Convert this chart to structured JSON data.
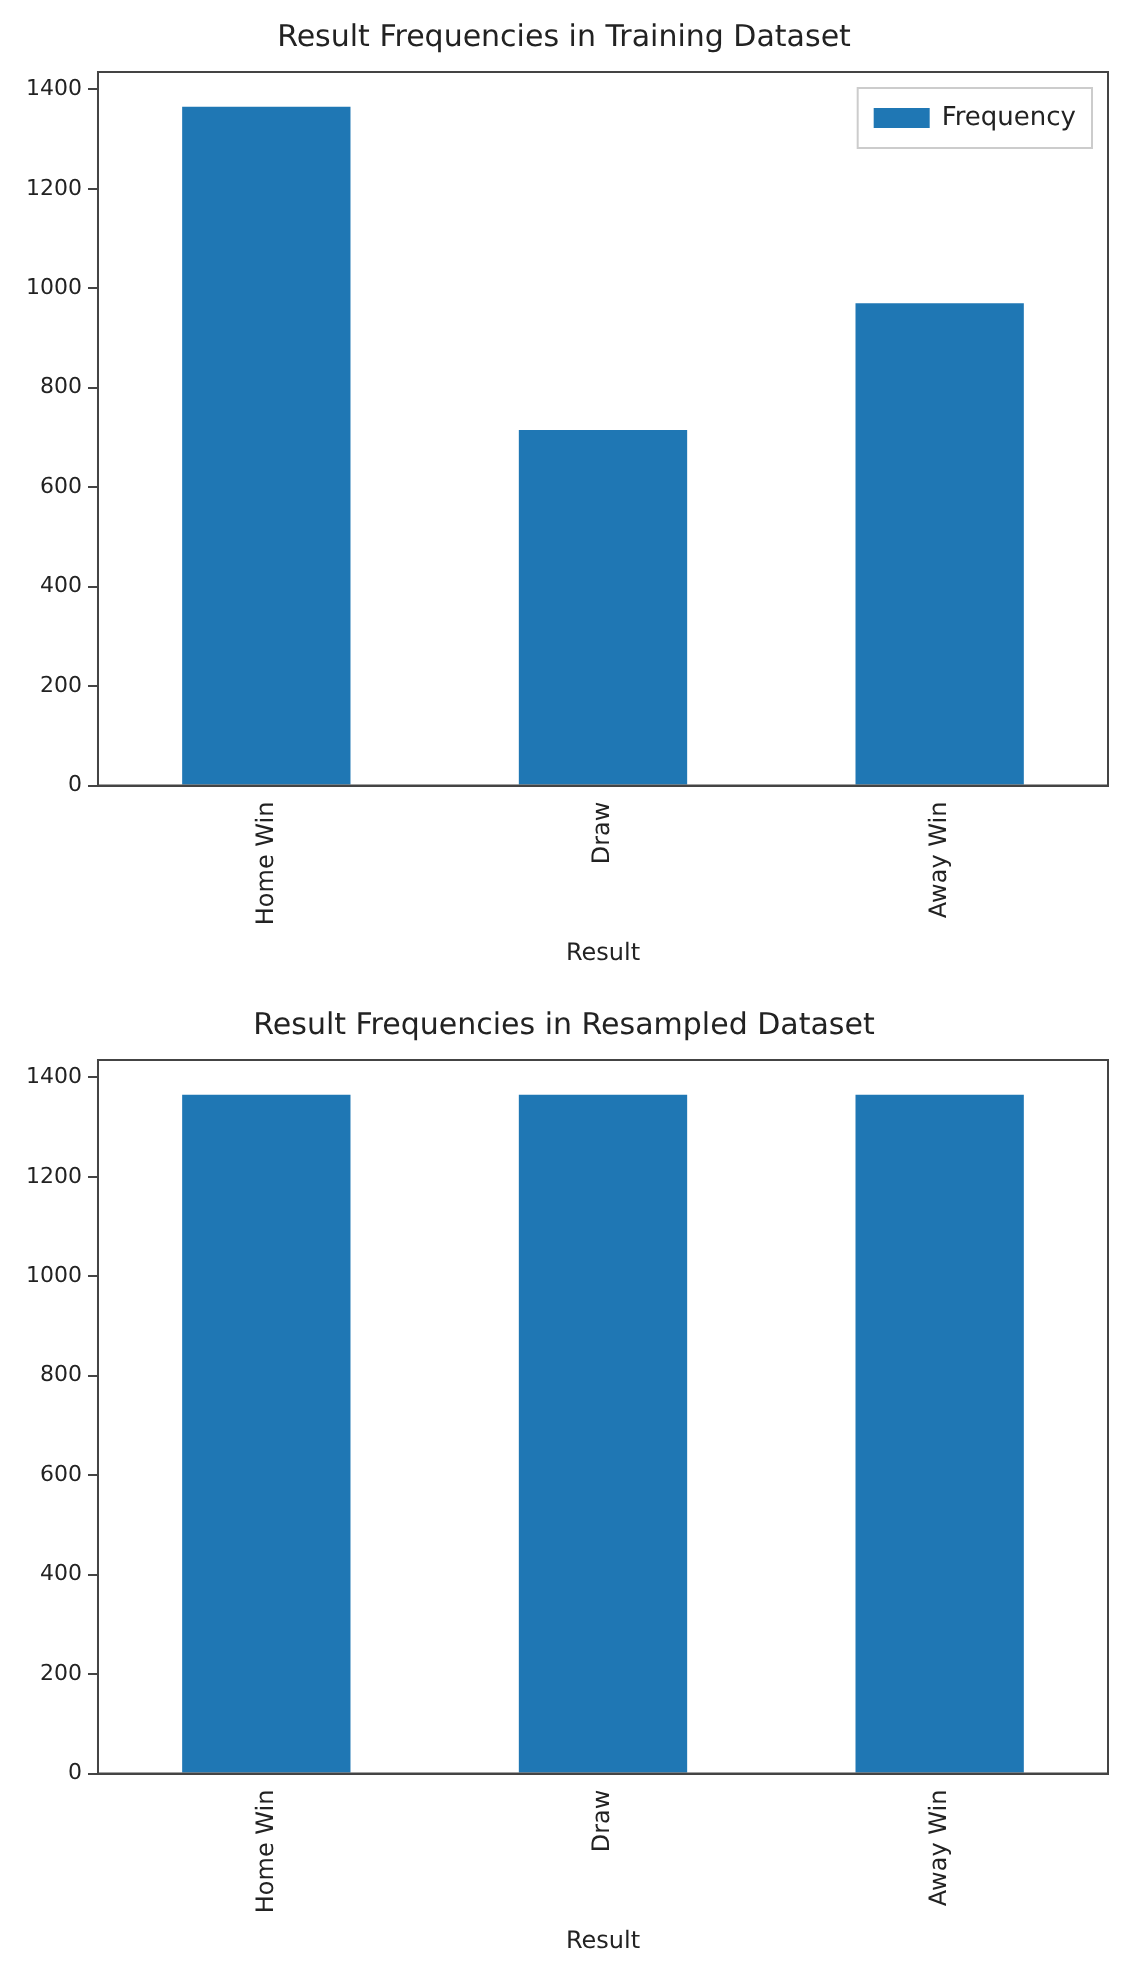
{
  "chart_data": [
    {
      "type": "bar",
      "title": "Result Frequencies in Training Dataset",
      "xlabel": "Result",
      "categories": [
        "Home Win",
        "Draw",
        "Away Win"
      ],
      "series": [
        {
          "name": "Frequency",
          "color": "#1f77b4",
          "values": [
            1365,
            715,
            970
          ]
        }
      ],
      "ylim": [
        0,
        1435
      ],
      "yticks": [
        0,
        200,
        400,
        600,
        800,
        1000,
        1200,
        1400
      ],
      "grid": false,
      "legend": "top right"
    },
    {
      "type": "bar",
      "title": "Result Frequencies in Resampled Dataset",
      "xlabel": "Result",
      "categories": [
        "Home Win",
        "Draw",
        "Away Win"
      ],
      "series": [
        {
          "color": "#1f77b4",
          "values": [
            1365,
            1365,
            1365
          ]
        }
      ],
      "ylim": [
        0,
        1435
      ],
      "yticks": [
        0,
        200,
        400,
        600,
        800,
        1000,
        1200,
        1400
      ],
      "grid": false
    }
  ]
}
